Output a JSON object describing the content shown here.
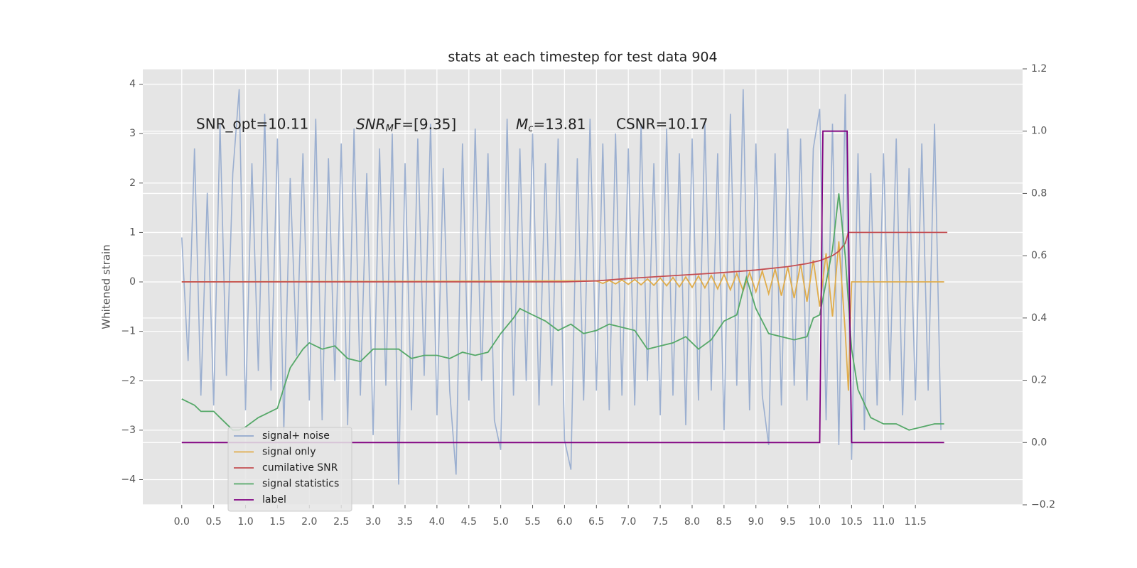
{
  "chart_data": {
    "type": "line",
    "title": "stats at each timestep for test data 904",
    "ylabel": "Whitened strain",
    "annotations": [
      "SNR_opt=10.11",
      {
        "italic": "SNR",
        "sub": "M",
        "rest": "F=[9.35]"
      },
      {
        "italic": "M",
        "sub": "c",
        "rest": "=13.81"
      },
      "CSNR=10.17"
    ],
    "xlim": [
      -0.61,
      13.18
    ],
    "ylim": [
      -4.51,
      4.31
    ],
    "y2lim": [
      -0.2,
      1.2
    ],
    "xticks": [
      {
        "value": 0,
        "label": "0.0"
      },
      0.5,
      {
        "value": 1,
        "label": "1.0"
      },
      1.5,
      {
        "value": 2,
        "label": "2.0"
      },
      2.5,
      {
        "value": 3,
        "label": "3.0"
      },
      3.5,
      {
        "value": 4,
        "label": "4.0"
      },
      4.5,
      {
        "value": 5,
        "label": "5.0"
      },
      5.5,
      {
        "value": 6,
        "label": "6.0"
      },
      6.5,
      {
        "value": 7,
        "label": "7.0"
      },
      7.5,
      {
        "value": 8,
        "label": "8.0"
      },
      8.5,
      {
        "value": 9,
        "label": "9.0"
      },
      9.5,
      {
        "value": 10,
        "label": "10.0"
      },
      10.5,
      {
        "value": 11,
        "label": "11.0"
      },
      11.5
    ],
    "yticks": [
      {
        "value": -4,
        "label": "−4"
      },
      {
        "value": -3,
        "label": "−3"
      },
      {
        "value": -2,
        "label": "−2"
      },
      {
        "value": -1,
        "label": "−1"
      },
      0,
      1,
      2,
      3,
      4
    ],
    "y2ticks": [
      {
        "value": -0.2,
        "label": "−0.2"
      },
      {
        "value": 0,
        "label": "0.0"
      },
      0.2,
      0.4,
      0.6,
      0.8,
      {
        "value": 1,
        "label": "1.0"
      },
      1.2
    ],
    "grid": true,
    "legend": "lower left",
    "series": [
      {
        "name": "signal+ noise",
        "color": "#92a8cd",
        "x": [
          0,
          0.1,
          0.2,
          0.3,
          0.4,
          0.5,
          0.6,
          0.7,
          0.8,
          0.9,
          1,
          1.1,
          1.2,
          1.3,
          1.4,
          1.5,
          1.6,
          1.7,
          1.8,
          1.9,
          2,
          2.1,
          2.2,
          2.3,
          2.4,
          2.5,
          2.6,
          2.7,
          2.8,
          2.9,
          3,
          3.1,
          3.2,
          3.3,
          3.4,
          3.5,
          3.6,
          3.7,
          3.8,
          3.9,
          4,
          4.1,
          4.2,
          4.3,
          4.4,
          4.5,
          4.6,
          4.7,
          4.8,
          4.9,
          5,
          5.1,
          5.2,
          5.3,
          5.4,
          5.5,
          5.6,
          5.7,
          5.8,
          5.9,
          6,
          6.1,
          6.2,
          6.3,
          6.4,
          6.5,
          6.6,
          6.7,
          6.8,
          6.9,
          7,
          7.1,
          7.2,
          7.3,
          7.4,
          7.5,
          7.6,
          7.7,
          7.8,
          7.9,
          8,
          8.1,
          8.2,
          8.3,
          8.4,
          8.5,
          8.6,
          8.7,
          8.8,
          8.9,
          9,
          9.1,
          9.2,
          9.3,
          9.4,
          9.5,
          9.6,
          9.7,
          9.8,
          9.9,
          10,
          10.1,
          10.2,
          10.3,
          10.4,
          10.5,
          10.6,
          10.7,
          10.8,
          10.9,
          11,
          11.1,
          11.2,
          11.3,
          11.4,
          11.5,
          11.6,
          11.7,
          11.8,
          11.9
        ],
        "values": [
          0.9,
          -1.6,
          2.7,
          -2.3,
          1.8,
          -2.5,
          3.2,
          -1.9,
          2.2,
          3.9,
          -2.6,
          2.4,
          -1.8,
          3.4,
          -2.2,
          2.9,
          -3.0,
          2.1,
          -1.5,
          2.6,
          -2.4,
          3.3,
          -2.8,
          2.5,
          -2.0,
          2.8,
          -2.9,
          3.1,
          -2.3,
          2.2,
          -3.1,
          2.7,
          -2.1,
          3.0,
          -4.1,
          2.4,
          -2.6,
          2.9,
          -1.9,
          3.2,
          -2.7,
          2.3,
          -2.2,
          -3.9,
          2.8,
          -2.4,
          3.1,
          -2.0,
          2.6,
          -2.8,
          -3.4,
          3.3,
          -2.3,
          2.7,
          -2.0,
          3.0,
          -2.5,
          2.4,
          -2.1,
          2.9,
          -3.2,
          -3.8,
          2.5,
          -2.4,
          3.3,
          -2.2,
          2.8,
          -2.6,
          3.0,
          -2.3,
          2.7,
          -2.5,
          3.2,
          -2.0,
          2.4,
          -2.7,
          3.1,
          -2.3,
          2.6,
          -2.9,
          2.9,
          -2.4,
          3.2,
          -2.2,
          2.6,
          -3.0,
          3.4,
          -2.1,
          3.9,
          -2.6,
          2.8,
          -2.3,
          -3.3,
          2.6,
          -2.5,
          3.1,
          -2.1,
          2.9,
          -2.4,
          2.7,
          3.5,
          -2.8,
          3.2,
          -3.3,
          3.8,
          -3.6,
          2.6,
          -3.0,
          2.2,
          -2.5,
          2.6,
          -2.0,
          2.9,
          -2.7,
          2.3,
          -2.4,
          2.8,
          -2.2,
          3.2,
          -3.0
        ]
      },
      {
        "name": "signal only",
        "color": "#e0ad4c",
        "x": [
          0,
          6.5,
          6.6,
          6.7,
          6.8,
          6.9,
          7,
          7.1,
          7.2,
          7.3,
          7.4,
          7.5,
          7.6,
          7.7,
          7.8,
          7.9,
          8,
          8.1,
          8.2,
          8.3,
          8.4,
          8.5,
          8.6,
          8.7,
          8.8,
          8.9,
          9,
          9.1,
          9.2,
          9.3,
          9.4,
          9.5,
          9.6,
          9.7,
          9.8,
          9.9,
          10,
          10.1,
          10.2,
          10.3,
          10.4,
          10.45,
          10.5,
          11.95
        ],
        "values": [
          0,
          0.02,
          -0.03,
          0.03,
          -0.04,
          0.04,
          -0.05,
          0.05,
          -0.06,
          0.06,
          -0.07,
          0.08,
          -0.08,
          0.09,
          -0.1,
          0.1,
          -0.11,
          0.12,
          -0.12,
          0.13,
          -0.14,
          0.15,
          -0.16,
          0.17,
          -0.18,
          0.19,
          -0.2,
          0.22,
          -0.24,
          0.26,
          -0.28,
          0.3,
          -0.33,
          0.36,
          -0.4,
          0.44,
          -0.5,
          0.58,
          -0.7,
          0.82,
          -1.0,
          -2.2,
          0,
          0
        ]
      },
      {
        "name": "cumilative SNR",
        "color": "#c44e52",
        "x": [
          0,
          6,
          6.5,
          7,
          7.5,
          8,
          8.5,
          9,
          9.5,
          9.8,
          10,
          10.2,
          10.3,
          10.4,
          10.45,
          12
        ],
        "values": [
          0,
          0,
          0.02,
          0.07,
          0.11,
          0.15,
          0.19,
          0.24,
          0.31,
          0.37,
          0.43,
          0.53,
          0.62,
          0.78,
          1.0,
          1.0
        ]
      },
      {
        "name": "signal statistics",
        "color": "#55a868",
        "axis": "y2",
        "x": [
          0,
          0.2,
          0.3,
          0.5,
          0.6,
          0.8,
          0.9,
          1,
          1.2,
          1.3,
          1.5,
          1.7,
          1.9,
          2,
          2.2,
          2.4,
          2.6,
          2.8,
          3,
          3.2,
          3.4,
          3.6,
          3.8,
          4,
          4.2,
          4.4,
          4.6,
          4.8,
          5,
          5.2,
          5.3,
          5.5,
          5.7,
          5.9,
          6.1,
          6.3,
          6.5,
          6.7,
          6.9,
          7.1,
          7.3,
          7.5,
          7.7,
          7.9,
          8.1,
          8.3,
          8.5,
          8.7,
          8.85,
          9,
          9.2,
          9.4,
          9.6,
          9.8,
          9.9,
          10,
          10.2,
          10.3,
          10.4,
          10.5,
          10.6,
          10.8,
          11,
          11.2,
          11.4,
          11.6,
          11.8,
          11.95
        ],
        "values": [
          0.14,
          0.12,
          0.1,
          0.1,
          0.08,
          0.04,
          0.04,
          0.05,
          0.08,
          0.09,
          0.11,
          0.24,
          0.3,
          0.32,
          0.3,
          0.31,
          0.27,
          0.26,
          0.3,
          0.3,
          0.3,
          0.27,
          0.28,
          0.28,
          0.27,
          0.29,
          0.28,
          0.29,
          0.35,
          0.4,
          0.43,
          0.41,
          0.39,
          0.36,
          0.38,
          0.35,
          0.36,
          0.38,
          0.37,
          0.36,
          0.3,
          0.31,
          0.32,
          0.34,
          0.3,
          0.33,
          0.39,
          0.41,
          0.53,
          0.43,
          0.35,
          0.34,
          0.33,
          0.34,
          0.4,
          0.41,
          0.62,
          0.8,
          0.6,
          0.3,
          0.17,
          0.08,
          0.06,
          0.06,
          0.04,
          0.05,
          0.06,
          0.06
        ]
      },
      {
        "name": "label",
        "color": "#800080",
        "axis": "y2",
        "x": [
          0,
          10.0,
          10.05,
          10.43,
          10.5,
          11.95
        ],
        "values": [
          0,
          0,
          1,
          1,
          0,
          0
        ]
      }
    ]
  }
}
